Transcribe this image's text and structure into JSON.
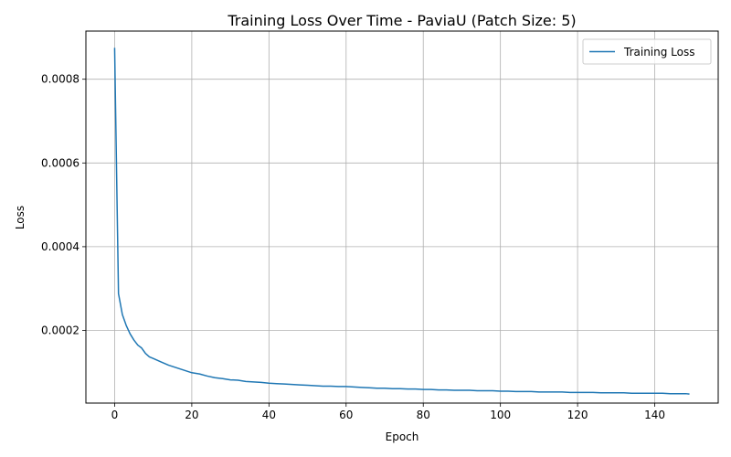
{
  "chart_data": {
    "type": "line",
    "title": "Training Loss Over Time - PaviaU (Patch Size: 5)",
    "xlabel": "Epoch",
    "ylabel": "Loss",
    "xlim": [
      -7.45,
      156.45
    ],
    "ylim": [
      2.65e-05,
      0.000915
    ],
    "xticks": [
      0,
      20,
      40,
      60,
      80,
      100,
      120,
      140
    ],
    "yticks": [
      0.0002,
      0.0004,
      0.0006,
      0.0008
    ],
    "grid": true,
    "legend": {
      "position": "top-right"
    },
    "colors": {
      "series": "#1f77b4",
      "grid": "#b0b0b0"
    },
    "series": [
      {
        "name": "Training Loss",
        "x": [
          0,
          1,
          2,
          3,
          4,
          5,
          6,
          7,
          8,
          9,
          10,
          12,
          14,
          16,
          18,
          20,
          22,
          24,
          26,
          28,
          30,
          32,
          34,
          36,
          38,
          40,
          42,
          44,
          46,
          48,
          50,
          52,
          54,
          56,
          58,
          60,
          62,
          64,
          66,
          68,
          70,
          72,
          74,
          76,
          78,
          80,
          82,
          84,
          86,
          88,
          90,
          92,
          94,
          96,
          98,
          100,
          102,
          104,
          106,
          108,
          110,
          112,
          114,
          116,
          118,
          120,
          122,
          124,
          126,
          128,
          130,
          132,
          134,
          136,
          138,
          140,
          142,
          144,
          146,
          148,
          149
        ],
        "y": [
          0.000875,
          0.000288,
          0.000238,
          0.000212,
          0.000192,
          0.000177,
          0.000165,
          0.000158,
          0.000145,
          0.000137,
          0.000133,
          0.000125,
          0.000117,
          0.000111,
          0.000105,
          9.9e-05,
          9.6e-05,
          9.1e-05,
          8.7e-05,
          8.5e-05,
          8.2e-05,
          8.1e-05,
          7.8e-05,
          7.7e-05,
          7.6e-05,
          7.4e-05,
          7.3e-05,
          7.2e-05,
          7.1e-05,
          7e-05,
          6.9e-05,
          6.8e-05,
          6.7e-05,
          6.7e-05,
          6.6e-05,
          6.6e-05,
          6.5e-05,
          6.4e-05,
          6.3e-05,
          6.2e-05,
          6.2e-05,
          6.1e-05,
          6.1e-05,
          6e-05,
          6e-05,
          5.9e-05,
          5.9e-05,
          5.8e-05,
          5.8e-05,
          5.7e-05,
          5.7e-05,
          5.7e-05,
          5.6e-05,
          5.6e-05,
          5.6e-05,
          5.5e-05,
          5.5e-05,
          5.4e-05,
          5.4e-05,
          5.4e-05,
          5.3e-05,
          5.3e-05,
          5.3e-05,
          5.3e-05,
          5.2e-05,
          5.2e-05,
          5.2e-05,
          5.2e-05,
          5.1e-05,
          5.1e-05,
          5.1e-05,
          5.1e-05,
          5e-05,
          5e-05,
          5e-05,
          5e-05,
          5e-05,
          4.9e-05,
          4.9e-05,
          4.9e-05,
          4.8e-05
        ]
      }
    ]
  }
}
